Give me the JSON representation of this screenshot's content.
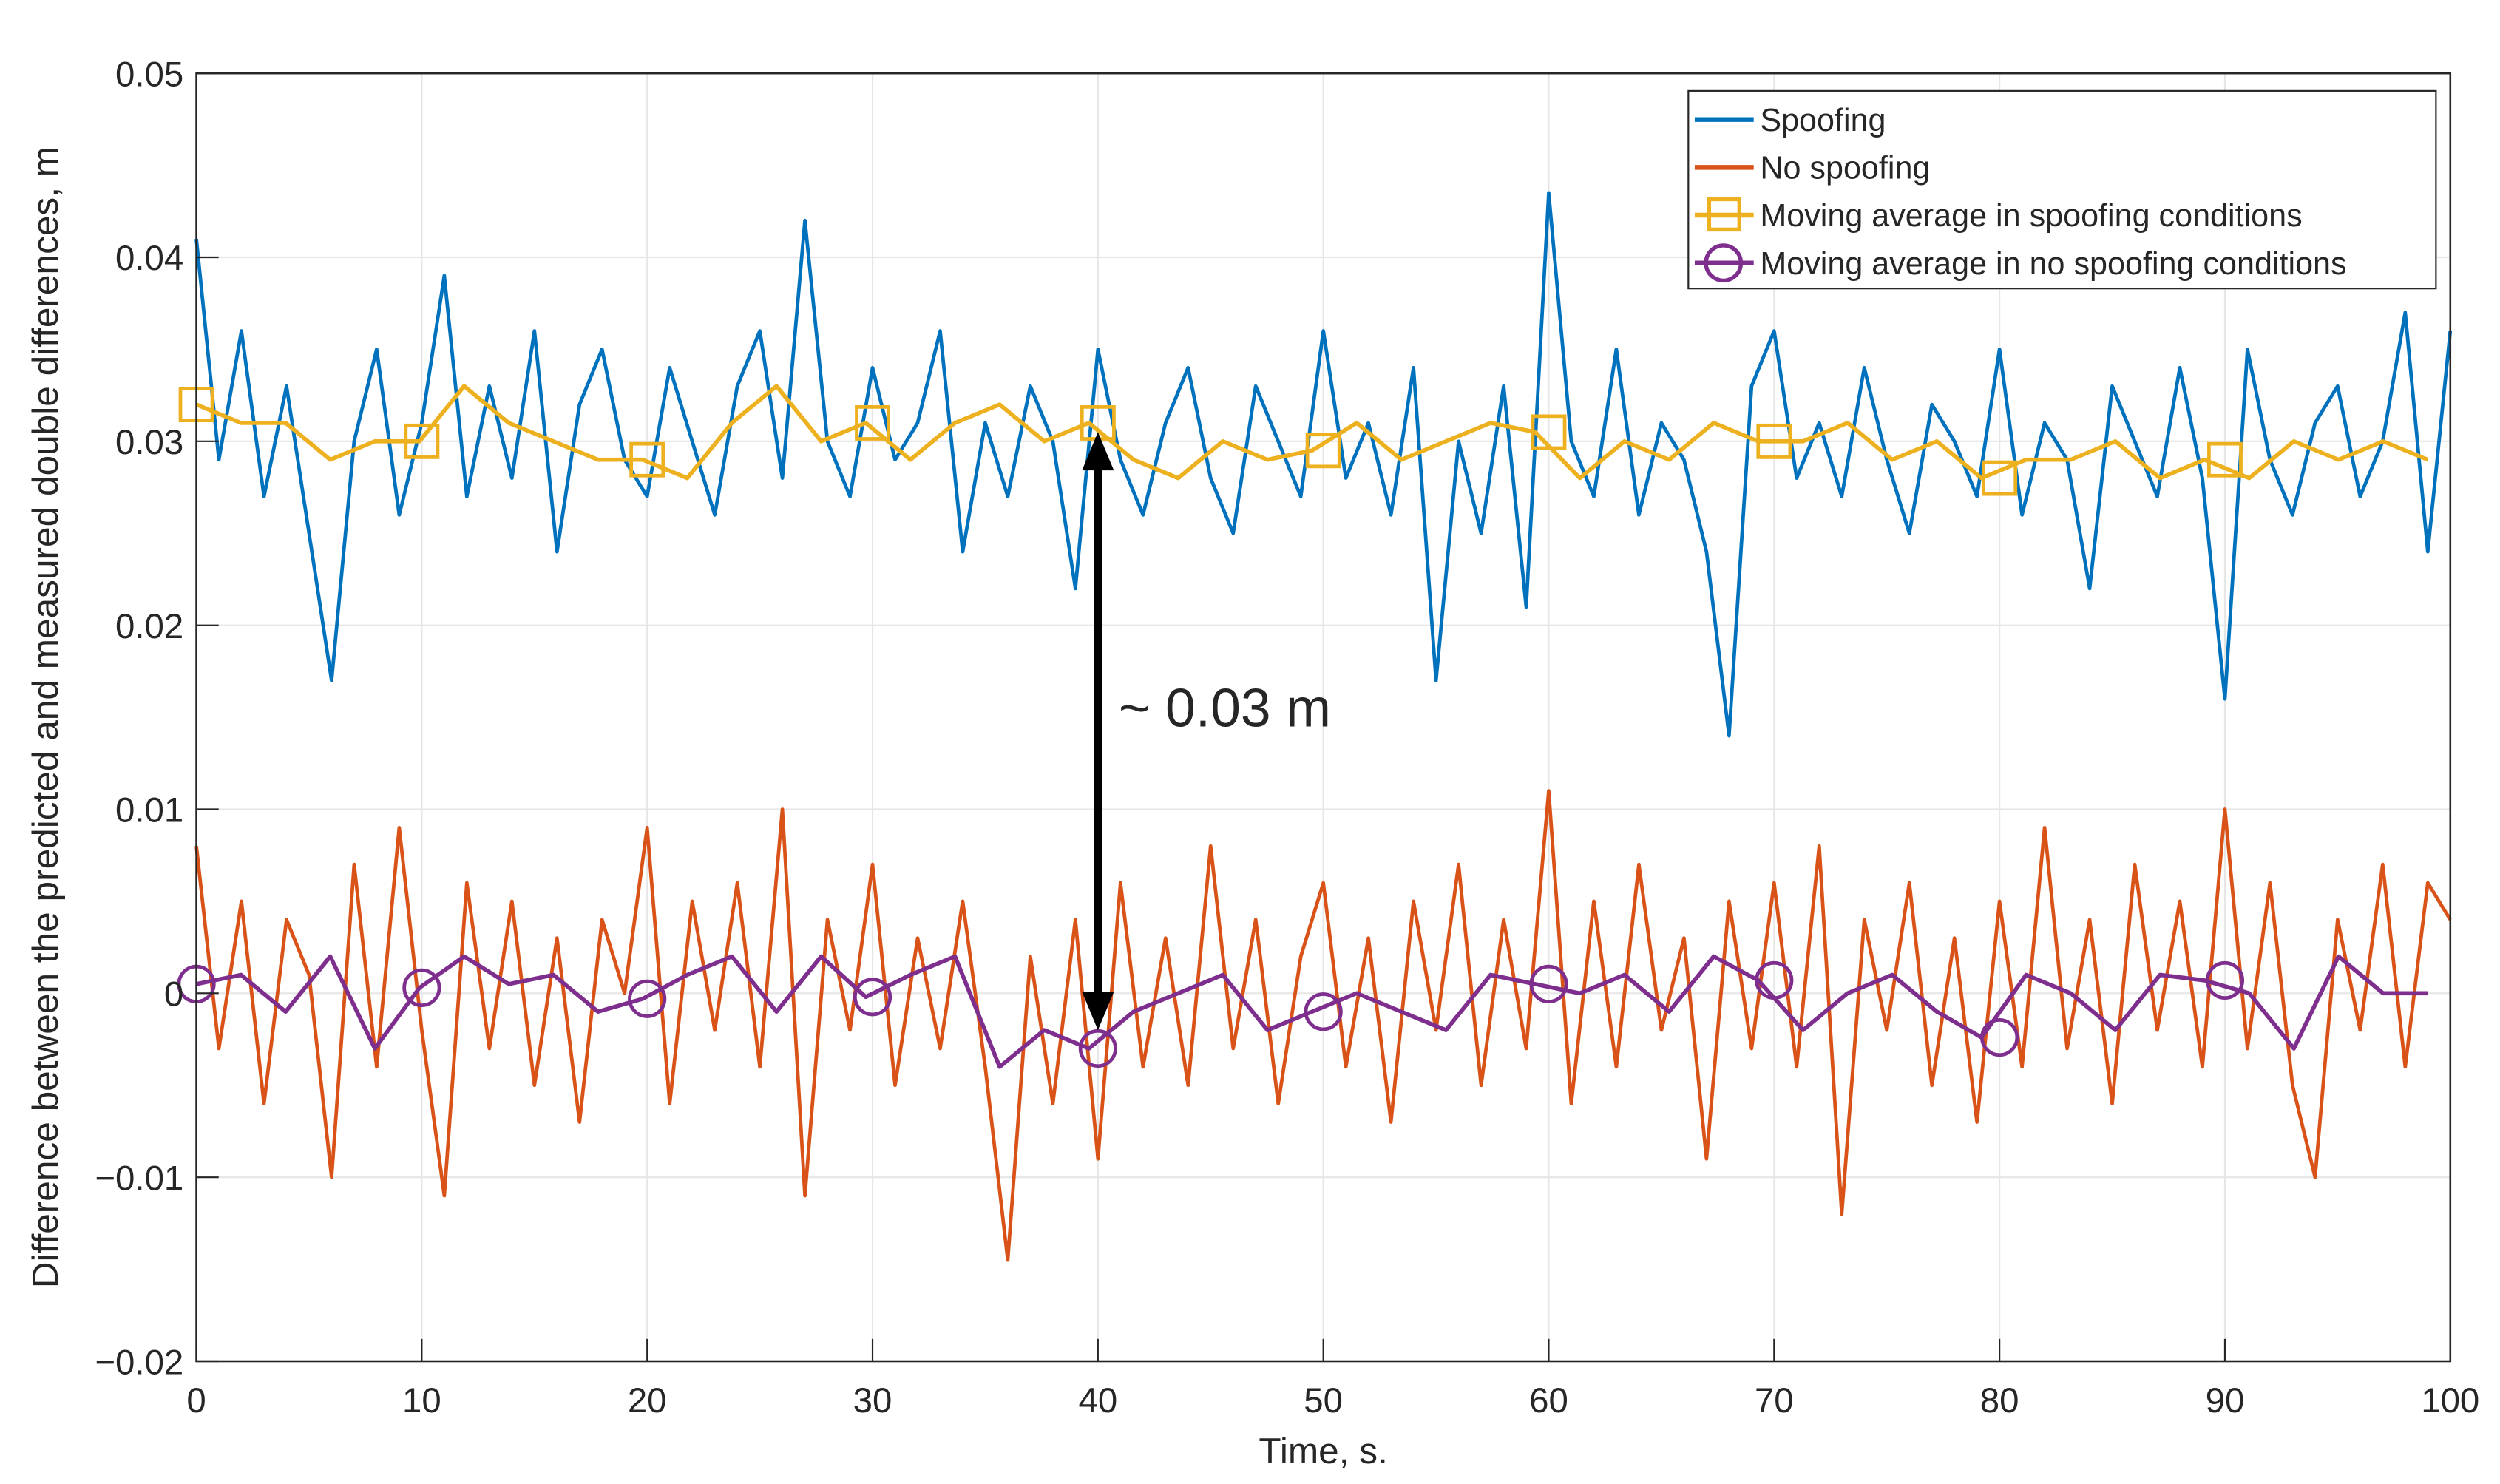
{
  "chart_data": {
    "type": "line",
    "title": "",
    "xlabel": "Time, s.",
    "ylabel": "Difference between the predicted and measured double differences, m",
    "xlim": [
      0,
      100
    ],
    "ylim": [
      -0.02,
      0.05
    ],
    "x_ticks": [
      "0",
      "10",
      "20",
      "30",
      "40",
      "50",
      "60",
      "70",
      "80",
      "90",
      "100"
    ],
    "y_ticks": [
      "0.05",
      "0.04",
      "0.03",
      "0.02",
      "0.01",
      "0",
      "−0.01",
      "−0.02"
    ],
    "grid": true,
    "legend_position": "top-right",
    "annotation": {
      "text": "~ 0.03 m",
      "arrow_x": 40,
      "arrow_from": 0.0305,
      "arrow_to": -0.002
    },
    "series": [
      {
        "name": "Spoofing",
        "color": "#0072BD",
        "marker": "none",
        "values": [
          0.041,
          0.029,
          0.036,
          0.027,
          0.033,
          0.025,
          0.017,
          0.03,
          0.035,
          0.026,
          0.031,
          0.039,
          0.027,
          0.033,
          0.028,
          0.036,
          0.024,
          0.032,
          0.035,
          0.029,
          0.027,
          0.034,
          0.03,
          0.026,
          0.033,
          0.036,
          0.028,
          0.042,
          0.03,
          0.027,
          0.034,
          0.029,
          0.031,
          0.036,
          0.024,
          0.031,
          0.027,
          0.033,
          0.03,
          0.022,
          0.035,
          0.029,
          0.026,
          0.031,
          0.034,
          0.028,
          0.025,
          0.033,
          0.03,
          0.027,
          0.036,
          0.028,
          0.031,
          0.026,
          0.034,
          0.017,
          0.03,
          0.025,
          0.033,
          0.021,
          0.0435,
          0.03,
          0.027,
          0.035,
          0.026,
          0.031,
          0.029,
          0.024,
          0.014,
          0.033,
          0.036,
          0.028,
          0.031,
          0.027,
          0.034,
          0.029,
          0.025,
          0.032,
          0.03,
          0.027,
          0.035,
          0.026,
          0.031,
          0.029,
          0.022,
          0.033,
          0.03,
          0.027,
          0.034,
          0.028,
          0.016,
          0.035,
          0.029,
          0.026,
          0.031,
          0.033,
          0.027,
          0.03,
          0.037,
          0.024,
          0.036
        ]
      },
      {
        "name": "No spoofing",
        "color": "#D95319",
        "marker": "none",
        "values": [
          0.008,
          -0.003,
          0.005,
          -0.006,
          0.004,
          0.001,
          -0.01,
          0.007,
          -0.004,
          0.009,
          -0.002,
          -0.011,
          0.006,
          -0.003,
          0.005,
          -0.005,
          0.003,
          -0.007,
          0.004,
          0.0,
          0.009,
          -0.006,
          0.005,
          -0.002,
          0.006,
          -0.004,
          0.01,
          -0.011,
          0.004,
          -0.002,
          0.007,
          -0.005,
          0.003,
          -0.003,
          0.005,
          -0.004,
          -0.0145,
          0.002,
          -0.006,
          0.004,
          -0.009,
          0.006,
          -0.004,
          0.003,
          -0.005,
          0.008,
          -0.003,
          0.004,
          -0.006,
          0.002,
          0.006,
          -0.004,
          0.003,
          -0.007,
          0.005,
          -0.002,
          0.007,
          -0.005,
          0.004,
          -0.003,
          0.011,
          -0.006,
          0.005,
          -0.004,
          0.007,
          -0.002,
          0.003,
          -0.009,
          0.005,
          -0.003,
          0.006,
          -0.004,
          0.008,
          -0.012,
          0.004,
          -0.002,
          0.006,
          -0.005,
          0.003,
          -0.007,
          0.005,
          -0.004,
          0.009,
          -0.003,
          0.004,
          -0.006,
          0.007,
          -0.002,
          0.005,
          -0.004,
          0.01,
          -0.003,
          0.006,
          -0.005,
          -0.01,
          0.004,
          -0.002,
          0.007,
          -0.004,
          0.006,
          0.004
        ]
      },
      {
        "name": "Moving average in spoofing conditions",
        "color": "#EDB120",
        "marker": "square",
        "marker_x": [
          0,
          10,
          20,
          30,
          40,
          50,
          60,
          70,
          80,
          90
        ],
        "values": [
          0.032,
          0.031,
          0.031,
          0.029,
          0.03,
          0.03,
          0.033,
          0.031,
          0.03,
          0.029,
          0.029,
          0.028,
          0.031,
          0.033,
          0.03,
          0.031,
          0.029,
          0.031,
          0.032,
          0.03,
          0.031,
          0.029,
          0.028,
          0.03,
          0.029,
          0.0295,
          0.031,
          0.029,
          0.03,
          0.031,
          0.0305,
          0.028,
          0.03,
          0.029,
          0.031,
          0.03,
          0.03,
          0.031,
          0.029,
          0.03,
          0.028,
          0.029,
          0.029,
          0.03,
          0.028,
          0.029,
          0.028,
          0.03,
          0.029,
          0.03,
          0.029
        ]
      },
      {
        "name": "Moving average in no spoofing conditions",
        "color": "#7E2F8E",
        "marker": "circle",
        "marker_x": [
          0,
          10,
          20,
          30,
          40,
          50,
          60,
          70,
          80,
          90
        ],
        "values": [
          0.0005,
          0.001,
          -0.001,
          0.002,
          -0.003,
          0.0003,
          0.002,
          0.0005,
          0.001,
          -0.001,
          -0.0003,
          0.001,
          0.002,
          -0.001,
          0.002,
          -0.0002,
          0.001,
          0.002,
          -0.004,
          -0.002,
          -0.003,
          -0.001,
          0.0,
          0.001,
          -0.002,
          -0.001,
          0.0,
          -0.001,
          -0.002,
          0.001,
          0.0005,
          0.0,
          0.001,
          -0.001,
          0.002,
          0.0007,
          -0.002,
          0.0,
          0.001,
          -0.001,
          -0.0024,
          0.001,
          0.0,
          -0.002,
          0.001,
          0.0007,
          0.0,
          -0.003,
          0.002,
          0.0,
          0.0
        ]
      }
    ]
  }
}
